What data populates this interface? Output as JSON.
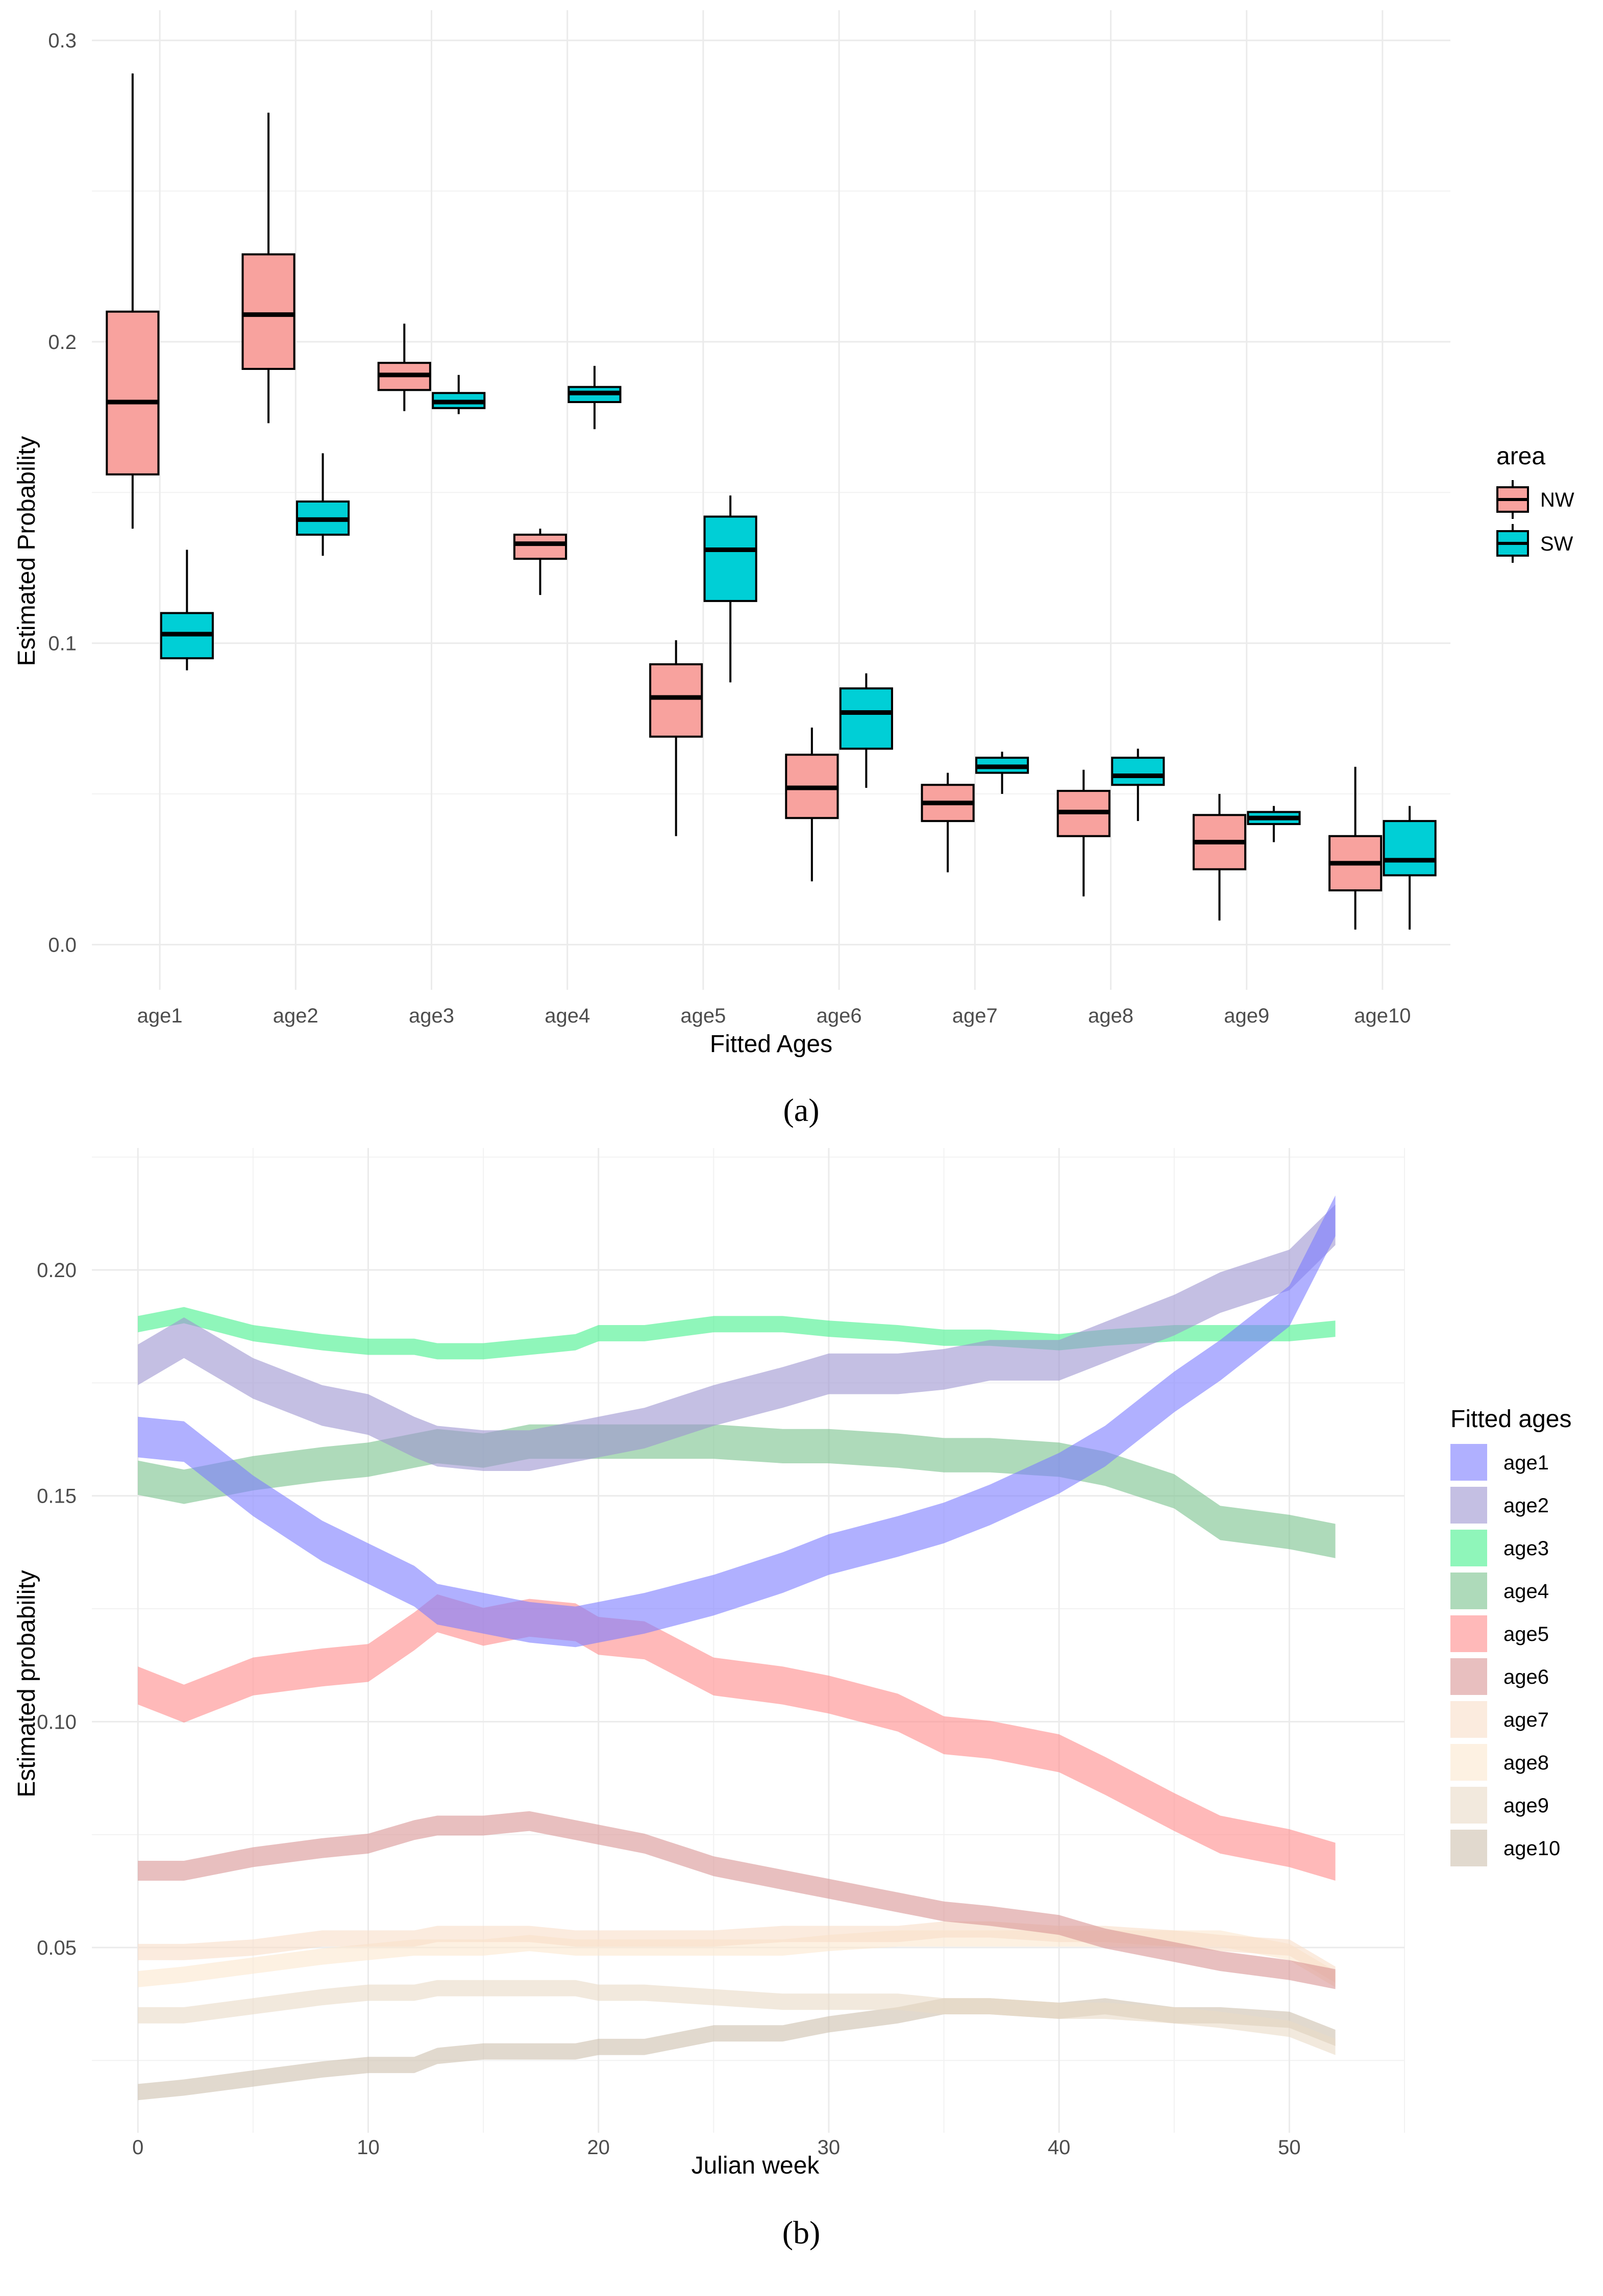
{
  "chart_data": [
    {
      "type": "box",
      "panel_label": "(a)",
      "xlabel": "Fitted Ages",
      "ylabel": "Estimated Probability",
      "ylim": [
        -0.015,
        0.31
      ],
      "yticks": [
        0.0,
        0.1,
        0.2,
        0.3
      ],
      "ytick_labels": [
        "0.0",
        "0.1",
        "0.2",
        "0.3"
      ],
      "categories": [
        "age1",
        "age2",
        "age3",
        "age4",
        "age5",
        "age6",
        "age7",
        "age8",
        "age9",
        "age10"
      ],
      "legend": {
        "title": "area",
        "position": "right"
      },
      "series": [
        {
          "name": "NW",
          "color": "#F8A29E",
          "boxes": [
            {
              "min": 0.138,
              "q1": 0.156,
              "median": 0.18,
              "q3": 0.21,
              "max": 0.289
            },
            {
              "min": 0.173,
              "q1": 0.191,
              "median": 0.209,
              "q3": 0.229,
              "max": 0.276
            },
            {
              "min": 0.177,
              "q1": 0.184,
              "median": 0.189,
              "q3": 0.193,
              "max": 0.206
            },
            {
              "min": 0.116,
              "q1": 0.128,
              "median": 0.133,
              "q3": 0.136,
              "max": 0.138
            },
            {
              "min": 0.036,
              "q1": 0.069,
              "median": 0.082,
              "q3": 0.093,
              "max": 0.101
            },
            {
              "min": 0.021,
              "q1": 0.042,
              "median": 0.052,
              "q3": 0.063,
              "max": 0.072
            },
            {
              "min": 0.024,
              "q1": 0.041,
              "median": 0.047,
              "q3": 0.053,
              "max": 0.057
            },
            {
              "min": 0.016,
              "q1": 0.036,
              "median": 0.044,
              "q3": 0.051,
              "max": 0.058
            },
            {
              "min": 0.008,
              "q1": 0.025,
              "median": 0.034,
              "q3": 0.043,
              "max": 0.05
            },
            {
              "min": 0.005,
              "q1": 0.018,
              "median": 0.027,
              "q3": 0.036,
              "max": 0.059
            }
          ]
        },
        {
          "name": "SW",
          "color": "#00CFD6",
          "boxes": [
            {
              "min": 0.091,
              "q1": 0.095,
              "median": 0.103,
              "q3": 0.11,
              "max": 0.131
            },
            {
              "min": 0.129,
              "q1": 0.136,
              "median": 0.141,
              "q3": 0.147,
              "max": 0.163
            },
            {
              "min": 0.176,
              "q1": 0.178,
              "median": 0.18,
              "q3": 0.183,
              "max": 0.189
            },
            {
              "min": 0.171,
              "q1": 0.18,
              "median": 0.183,
              "q3": 0.185,
              "max": 0.192
            },
            {
              "min": 0.087,
              "q1": 0.114,
              "median": 0.131,
              "q3": 0.142,
              "max": 0.149
            },
            {
              "min": 0.052,
              "q1": 0.065,
              "median": 0.077,
              "q3": 0.085,
              "max": 0.09
            },
            {
              "min": 0.05,
              "q1": 0.057,
              "median": 0.059,
              "q3": 0.062,
              "max": 0.064
            },
            {
              "min": 0.041,
              "q1": 0.053,
              "median": 0.056,
              "q3": 0.062,
              "max": 0.065
            },
            {
              "min": 0.034,
              "q1": 0.04,
              "median": 0.042,
              "q3": 0.044,
              "max": 0.046
            },
            {
              "min": 0.005,
              "q1": 0.023,
              "median": 0.028,
              "q3": 0.041,
              "max": 0.046
            }
          ]
        }
      ]
    },
    {
      "type": "area",
      "panel_label": "(b)",
      "xlabel": "Julian week",
      "ylabel": "Estimated probability",
      "xlim": [
        -2,
        55
      ],
      "ylim": [
        0.009,
        0.227
      ],
      "xticks": [
        0,
        10,
        20,
        30,
        40,
        50
      ],
      "xtick_labels": [
        "0",
        "10",
        "20",
        "30",
        "40",
        "50"
      ],
      "yticks": [
        0.05,
        0.1,
        0.15,
        0.2
      ],
      "ytick_labels": [
        "0.05",
        "0.10",
        "0.15",
        "0.20"
      ],
      "band_halfwidth_note": "ribbons plotted as mean +/- half-width",
      "legend": {
        "title": "Fitted ages",
        "position": "right"
      },
      "x_knots": [
        0,
        2,
        5,
        8,
        10,
        12,
        13,
        15,
        17,
        19,
        20,
        22,
        25,
        28,
        30,
        33,
        35,
        37,
        40,
        42,
        45,
        47,
        50,
        52
      ],
      "series": [
        {
          "name": "age1",
          "color": "#7B7BFF",
          "halfwidth": 0.0045,
          "values": [
            0.163,
            0.162,
            0.15,
            0.14,
            0.135,
            0.13,
            0.126,
            0.124,
            0.122,
            0.121,
            0.122,
            0.124,
            0.128,
            0.133,
            0.137,
            0.141,
            0.144,
            0.148,
            0.155,
            0.161,
            0.173,
            0.18,
            0.192,
            0.212
          ]
        },
        {
          "name": "age2",
          "color": "#9C94D0",
          "halfwidth": 0.0045,
          "values": [
            0.179,
            0.185,
            0.176,
            0.17,
            0.168,
            0.163,
            0.161,
            0.16,
            0.16,
            0.162,
            0.163,
            0.165,
            0.17,
            0.174,
            0.177,
            0.177,
            0.178,
            0.18,
            0.18,
            0.184,
            0.19,
            0.195,
            0.2,
            0.21
          ]
        },
        {
          "name": "age3",
          "color": "#44F08C",
          "halfwidth": 0.0018,
          "values": [
            0.188,
            0.19,
            0.186,
            0.184,
            0.183,
            0.183,
            0.182,
            0.182,
            0.183,
            0.184,
            0.186,
            0.186,
            0.188,
            0.188,
            0.187,
            0.186,
            0.185,
            0.185,
            0.184,
            0.185,
            0.186,
            0.186,
            0.186,
            0.187
          ]
        },
        {
          "name": "age4",
          "color": "#78C28C",
          "halfwidth": 0.0038,
          "values": [
            0.154,
            0.152,
            0.155,
            0.157,
            0.158,
            0.16,
            0.161,
            0.16,
            0.162,
            0.162,
            0.162,
            0.162,
            0.162,
            0.161,
            0.161,
            0.16,
            0.159,
            0.159,
            0.158,
            0.156,
            0.151,
            0.144,
            0.142,
            0.14
          ]
        },
        {
          "name": "age5",
          "color": "#FF8A8A",
          "halfwidth": 0.0042,
          "values": [
            0.108,
            0.104,
            0.11,
            0.112,
            0.113,
            0.12,
            0.124,
            0.121,
            0.123,
            0.122,
            0.119,
            0.118,
            0.11,
            0.108,
            0.106,
            0.102,
            0.097,
            0.096,
            0.093,
            0.088,
            0.08,
            0.075,
            0.072,
            0.069
          ]
        },
        {
          "name": "age6",
          "color": "#D89494",
          "halfwidth": 0.0022,
          "values": [
            0.067,
            0.067,
            0.07,
            0.072,
            0.073,
            0.076,
            0.077,
            0.077,
            0.078,
            0.076,
            0.075,
            0.073,
            0.068,
            0.065,
            0.063,
            0.06,
            0.058,
            0.057,
            0.055,
            0.052,
            0.049,
            0.047,
            0.045,
            0.043
          ]
        },
        {
          "name": "age7",
          "color": "#F8DDC8",
          "halfwidth": 0.0018,
          "values": [
            0.049,
            0.049,
            0.05,
            0.052,
            0.052,
            0.052,
            0.053,
            0.053,
            0.053,
            0.052,
            0.052,
            0.052,
            0.052,
            0.053,
            0.053,
            0.053,
            0.054,
            0.054,
            0.053,
            0.053,
            0.052,
            0.051,
            0.05,
            0.044
          ]
        },
        {
          "name": "age8",
          "color": "#FCE8CE",
          "halfwidth": 0.0018,
          "values": [
            0.043,
            0.044,
            0.046,
            0.048,
            0.049,
            0.05,
            0.05,
            0.05,
            0.051,
            0.05,
            0.05,
            0.05,
            0.05,
            0.05,
            0.051,
            0.052,
            0.052,
            0.052,
            0.052,
            0.052,
            0.052,
            0.052,
            0.049,
            0.043
          ]
        },
        {
          "name": "age9",
          "color": "#EADBC7",
          "halfwidth": 0.0018,
          "values": [
            0.035,
            0.035,
            0.037,
            0.039,
            0.04,
            0.04,
            0.041,
            0.041,
            0.041,
            0.041,
            0.04,
            0.04,
            0.039,
            0.038,
            0.038,
            0.038,
            0.037,
            0.037,
            0.036,
            0.036,
            0.035,
            0.034,
            0.032,
            0.028
          ]
        },
        {
          "name": "age10",
          "color": "#CDBFAD",
          "halfwidth": 0.0018,
          "values": [
            0.018,
            0.019,
            0.021,
            0.023,
            0.024,
            0.024,
            0.026,
            0.027,
            0.027,
            0.027,
            0.028,
            0.028,
            0.031,
            0.031,
            0.033,
            0.035,
            0.037,
            0.037,
            0.036,
            0.037,
            0.035,
            0.035,
            0.034,
            0.03
          ]
        }
      ]
    }
  ]
}
